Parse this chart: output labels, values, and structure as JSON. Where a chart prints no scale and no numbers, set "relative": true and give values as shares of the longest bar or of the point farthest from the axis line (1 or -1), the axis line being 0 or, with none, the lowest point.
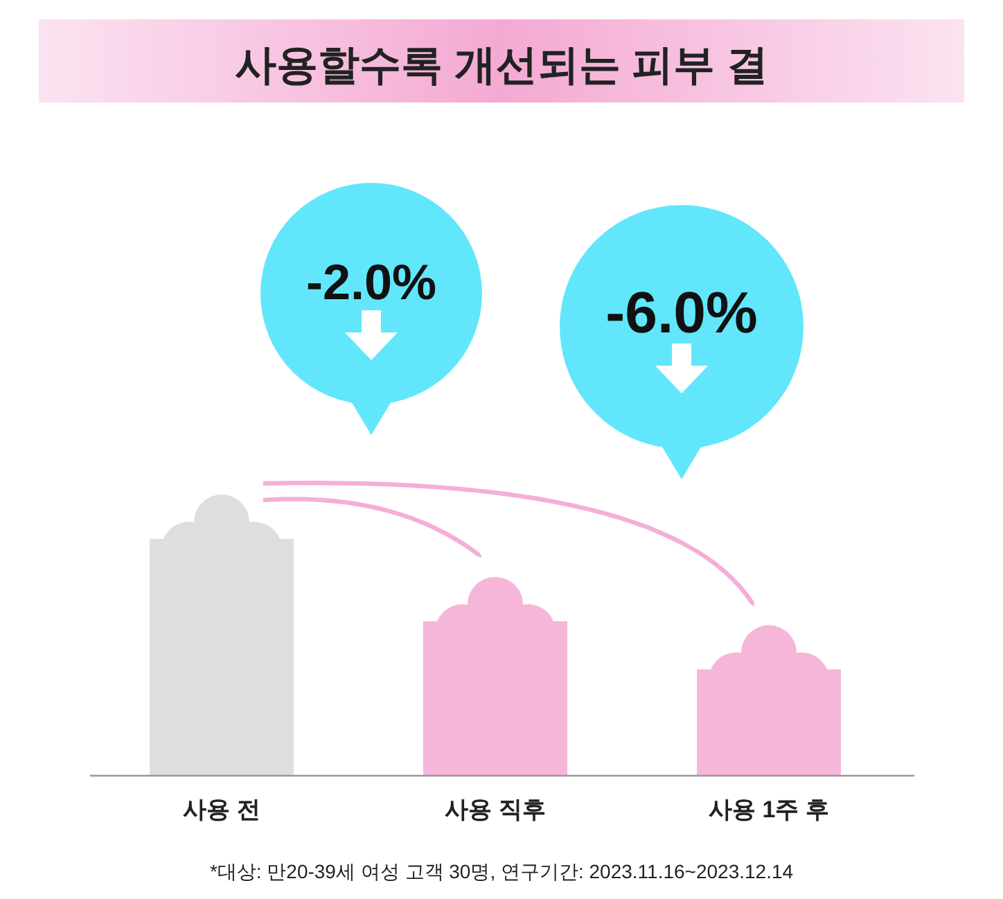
{
  "chart_data": {
    "type": "bar",
    "relative": true,
    "title": "사용할수록 개선되는 피부 결",
    "categories": [
      "사용 전",
      "사용 직후",
      "사용 1주 후"
    ],
    "values": [
      1,
      0.71,
      0.54
    ],
    "colors": [
      "#dedede",
      "#f5b6da",
      "#f5b6da"
    ],
    "annotations": [
      "-2.0%",
      "-6.0%",
      "*대상: 만20-39세 여성 고객 30명, 연구기간: 2023.11.16~2023.12.14"
    ]
  }
}
